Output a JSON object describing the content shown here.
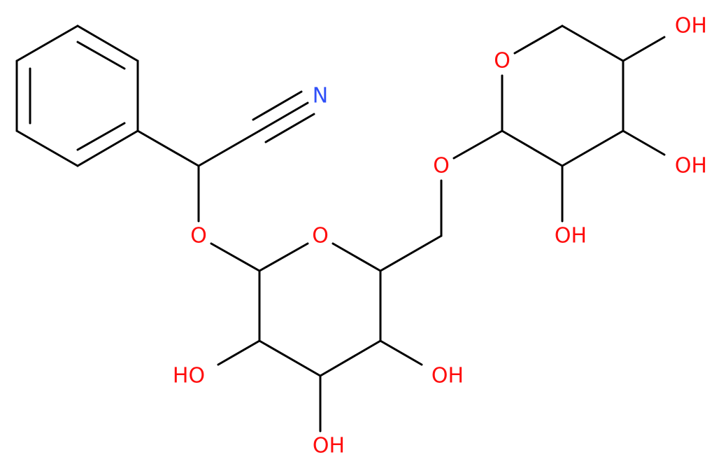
{
  "labels": [
    "N",
    "O",
    "O",
    "HO",
    "OH",
    "OH",
    "O",
    "O",
    "OH",
    "OH",
    "OH"
  ]
}
